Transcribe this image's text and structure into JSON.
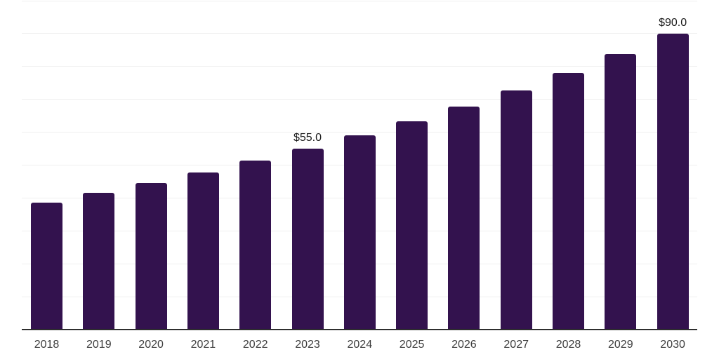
{
  "chart_data": {
    "type": "bar",
    "title": "",
    "xlabel": "",
    "ylabel": "",
    "categories": [
      "2018",
      "2019",
      "2020",
      "2021",
      "2022",
      "2023",
      "2024",
      "2025",
      "2026",
      "2027",
      "2028",
      "2029",
      "2030"
    ],
    "values": [
      38.7,
      41.5,
      44.6,
      47.8,
      51.3,
      55.0,
      59.0,
      63.3,
      67.9,
      72.8,
      78.1,
      83.8,
      90.0
    ],
    "data_labels": [
      {
        "category": "2023",
        "text": "$55.0"
      },
      {
        "category": "2030",
        "text": "$90.0"
      }
    ],
    "ylim": [
      0,
      100
    ],
    "grid_step": 10,
    "grid": "horizontal",
    "legend_position": "none",
    "y_axis_labels_visible": false,
    "colors": {
      "bar": "#33124E",
      "grid_line": "#efefef",
      "axis_line": "#2e2e2e",
      "tick_label": "#3d3d3d",
      "data_label": "#1a1a1a",
      "background": "#ffffff"
    }
  }
}
